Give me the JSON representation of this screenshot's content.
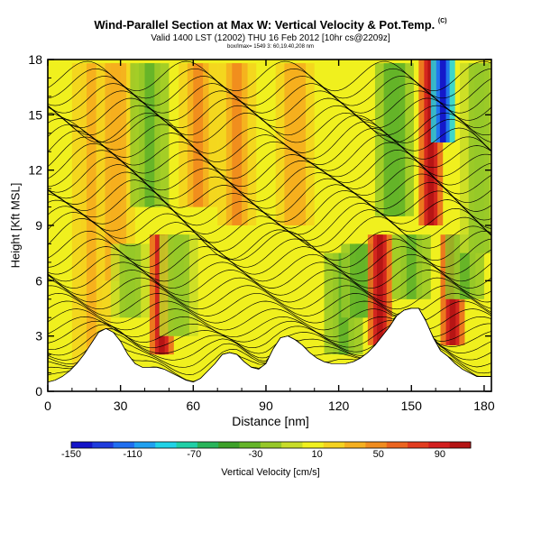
{
  "chart_data": {
    "type": "heatmap",
    "title": "Wind-Parallel Section at Max W: Vertical Velocity & Pot.Temp.",
    "title_mark": "(C)",
    "subtitle": "Valid 1400 LST (12002) THU 16 Feb 2012 [10hr cs@2209z]",
    "subtitle2": "box/lmax= 1549 3: 60,19.40,208 nm",
    "xlabel": "Distance [nm]",
    "ylabel": "Height [Kft MSL]",
    "xlim": [
      0,
      183
    ],
    "ylim": [
      0,
      18
    ],
    "xticks": [
      "0",
      "30",
      "60",
      "90",
      "120",
      "150",
      "180"
    ],
    "yticks": [
      "0",
      "3",
      "6",
      "9",
      "12",
      "15",
      "18"
    ],
    "colorbar": {
      "label": "Vertical Velocity [cm/s]",
      "tick_labels": [
        "-150",
        "-110",
        "-70",
        "-30",
        "10",
        "50",
        "90"
      ],
      "range": [
        -150,
        110
      ],
      "colors": [
        "#1414c8",
        "#1e3cdc",
        "#1e6ef0",
        "#1ea0f0",
        "#1ed2e6",
        "#1ecfa6",
        "#28b45a",
        "#3ca028",
        "#64b428",
        "#96c828",
        "#c8dc28",
        "#f0f01e",
        "#f5d21e",
        "#f5af1e",
        "#f08c1e",
        "#eb641e",
        "#e13c1e",
        "#d21e1e",
        "#b41414"
      ]
    },
    "vertical_velocity_field": [
      {
        "x": 18,
        "h_lo": 0.5,
        "h_hi": 17.8,
        "w": 30
      },
      {
        "x": 28,
        "h_lo": 6.0,
        "h_hi": 17.8,
        "w": 40
      },
      {
        "x": 34,
        "h_lo": 4.0,
        "h_hi": 8.0,
        "w": -20
      },
      {
        "x": 42,
        "h_lo": 10.0,
        "h_hi": 17.8,
        "w": -30
      },
      {
        "x": 47,
        "h_lo": 2.0,
        "h_hi": 8.5,
        "w": 110
      },
      {
        "x": 54,
        "h_lo": 3.0,
        "h_hi": 8.5,
        "w": -20
      },
      {
        "x": 62,
        "h_lo": 10.0,
        "h_hi": 17.8,
        "w": 50
      },
      {
        "x": 78,
        "h_lo": 9.0,
        "h_hi": 17.8,
        "w": 50
      },
      {
        "x": 102,
        "h_lo": 9.0,
        "h_hi": 17.8,
        "w": 40
      },
      {
        "x": 122,
        "h_lo": 2.0,
        "h_hi": 7.5,
        "w": -30
      },
      {
        "x": 129,
        "h_lo": 4.0,
        "h_hi": 8.0,
        "w": -40
      },
      {
        "x": 137,
        "h_lo": 2.5,
        "h_hi": 8.5,
        "w": 110
      },
      {
        "x": 143,
        "h_lo": 9.5,
        "h_hi": 17.8,
        "w": -40
      },
      {
        "x": 150,
        "h_lo": 5.0,
        "h_hi": 8.5,
        "w": -30
      },
      {
        "x": 158,
        "h_lo": 9.0,
        "h_hi": 18.0,
        "w": 110
      },
      {
        "x": 163,
        "h_lo": 13.5,
        "h_hi": 18.0,
        "w": -150
      },
      {
        "x": 167,
        "h_lo": 2.5,
        "h_hi": 8.5,
        "w": 110
      },
      {
        "x": 172,
        "h_lo": 5.0,
        "h_hi": 8.5,
        "w": -30
      },
      {
        "x": 178,
        "h_lo": 7.5,
        "h_hi": 17.8,
        "w": -20
      }
    ],
    "terrain": {
      "x": [
        0,
        3,
        6,
        9,
        12,
        15,
        18,
        21,
        24,
        27,
        30,
        33,
        36,
        39,
        42,
        45,
        48,
        51,
        54,
        57,
        60,
        63,
        66,
        69,
        72,
        75,
        78,
        81,
        84,
        87,
        90,
        93,
        96,
        99,
        102,
        105,
        108,
        111,
        114,
        117,
        120,
        123,
        126,
        129,
        132,
        135,
        138,
        141,
        144,
        147,
        150,
        153,
        156,
        159,
        162,
        165,
        168,
        171,
        174,
        177,
        180,
        183
      ],
      "h": [
        0.5,
        0.6,
        0.8,
        1.1,
        1.5,
        2.0,
        2.6,
        3.2,
        3.4,
        3.2,
        2.7,
        2.0,
        1.5,
        1.3,
        1.3,
        1.3,
        1.2,
        1.0,
        0.8,
        0.6,
        0.5,
        0.7,
        1.1,
        1.5,
        2.0,
        2.1,
        2.0,
        1.6,
        1.3,
        1.2,
        1.5,
        2.3,
        2.9,
        3.0,
        2.8,
        2.5,
        2.1,
        1.8,
        1.6,
        1.5,
        1.5,
        1.5,
        1.6,
        1.8,
        2.1,
        2.5,
        3.0,
        3.5,
        4.1,
        4.4,
        4.5,
        4.5,
        3.8,
        2.9,
        2.2,
        1.9,
        1.5,
        1.2,
        1.0,
        0.8,
        0.8,
        0.8
      ]
    },
    "potential_temperature_contours": {
      "count": 45,
      "base": -0.5,
      "step": 0.4,
      "line_color": "#000000"
    }
  }
}
